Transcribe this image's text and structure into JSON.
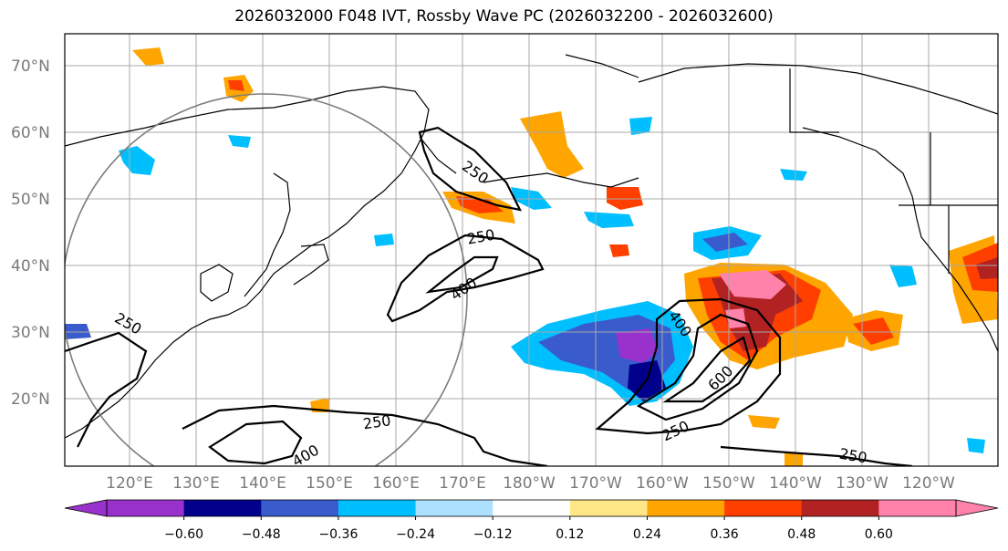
{
  "title": "2026032000 F048 IVT, Rossby Wave PC (2026032200 - 2026032600)",
  "map": {
    "lat_labels": [
      "70°N",
      "60°N",
      "50°N",
      "40°N",
      "30°N",
      "20°N"
    ],
    "lon_labels": [
      "120°E",
      "130°E",
      "140°E",
      "150°E",
      "160°E",
      "170°E",
      "180°W",
      "170°W",
      "160°W",
      "150°W",
      "140°W",
      "130°W",
      "120°W"
    ],
    "ivt_contour_labels": [
      "250",
      "250",
      "400",
      "250",
      "400",
      "250",
      "400",
      "600",
      "250",
      "250"
    ]
  },
  "colorbar": {
    "ticks": [
      "−0.60",
      "−0.48",
      "−0.36",
      "−0.24",
      "−0.12",
      "0.12",
      "0.24",
      "0.36",
      "0.48",
      "0.60"
    ],
    "colors": [
      "#9932CC",
      "#00008B",
      "#3A5BCC",
      "#00BFFF",
      "#ADDFFF",
      "#FFFFFF",
      "#FFE787",
      "#FFA500",
      "#FF3F00",
      "#B22222",
      "#FF82AB",
      "#FF82AB"
    ]
  }
}
